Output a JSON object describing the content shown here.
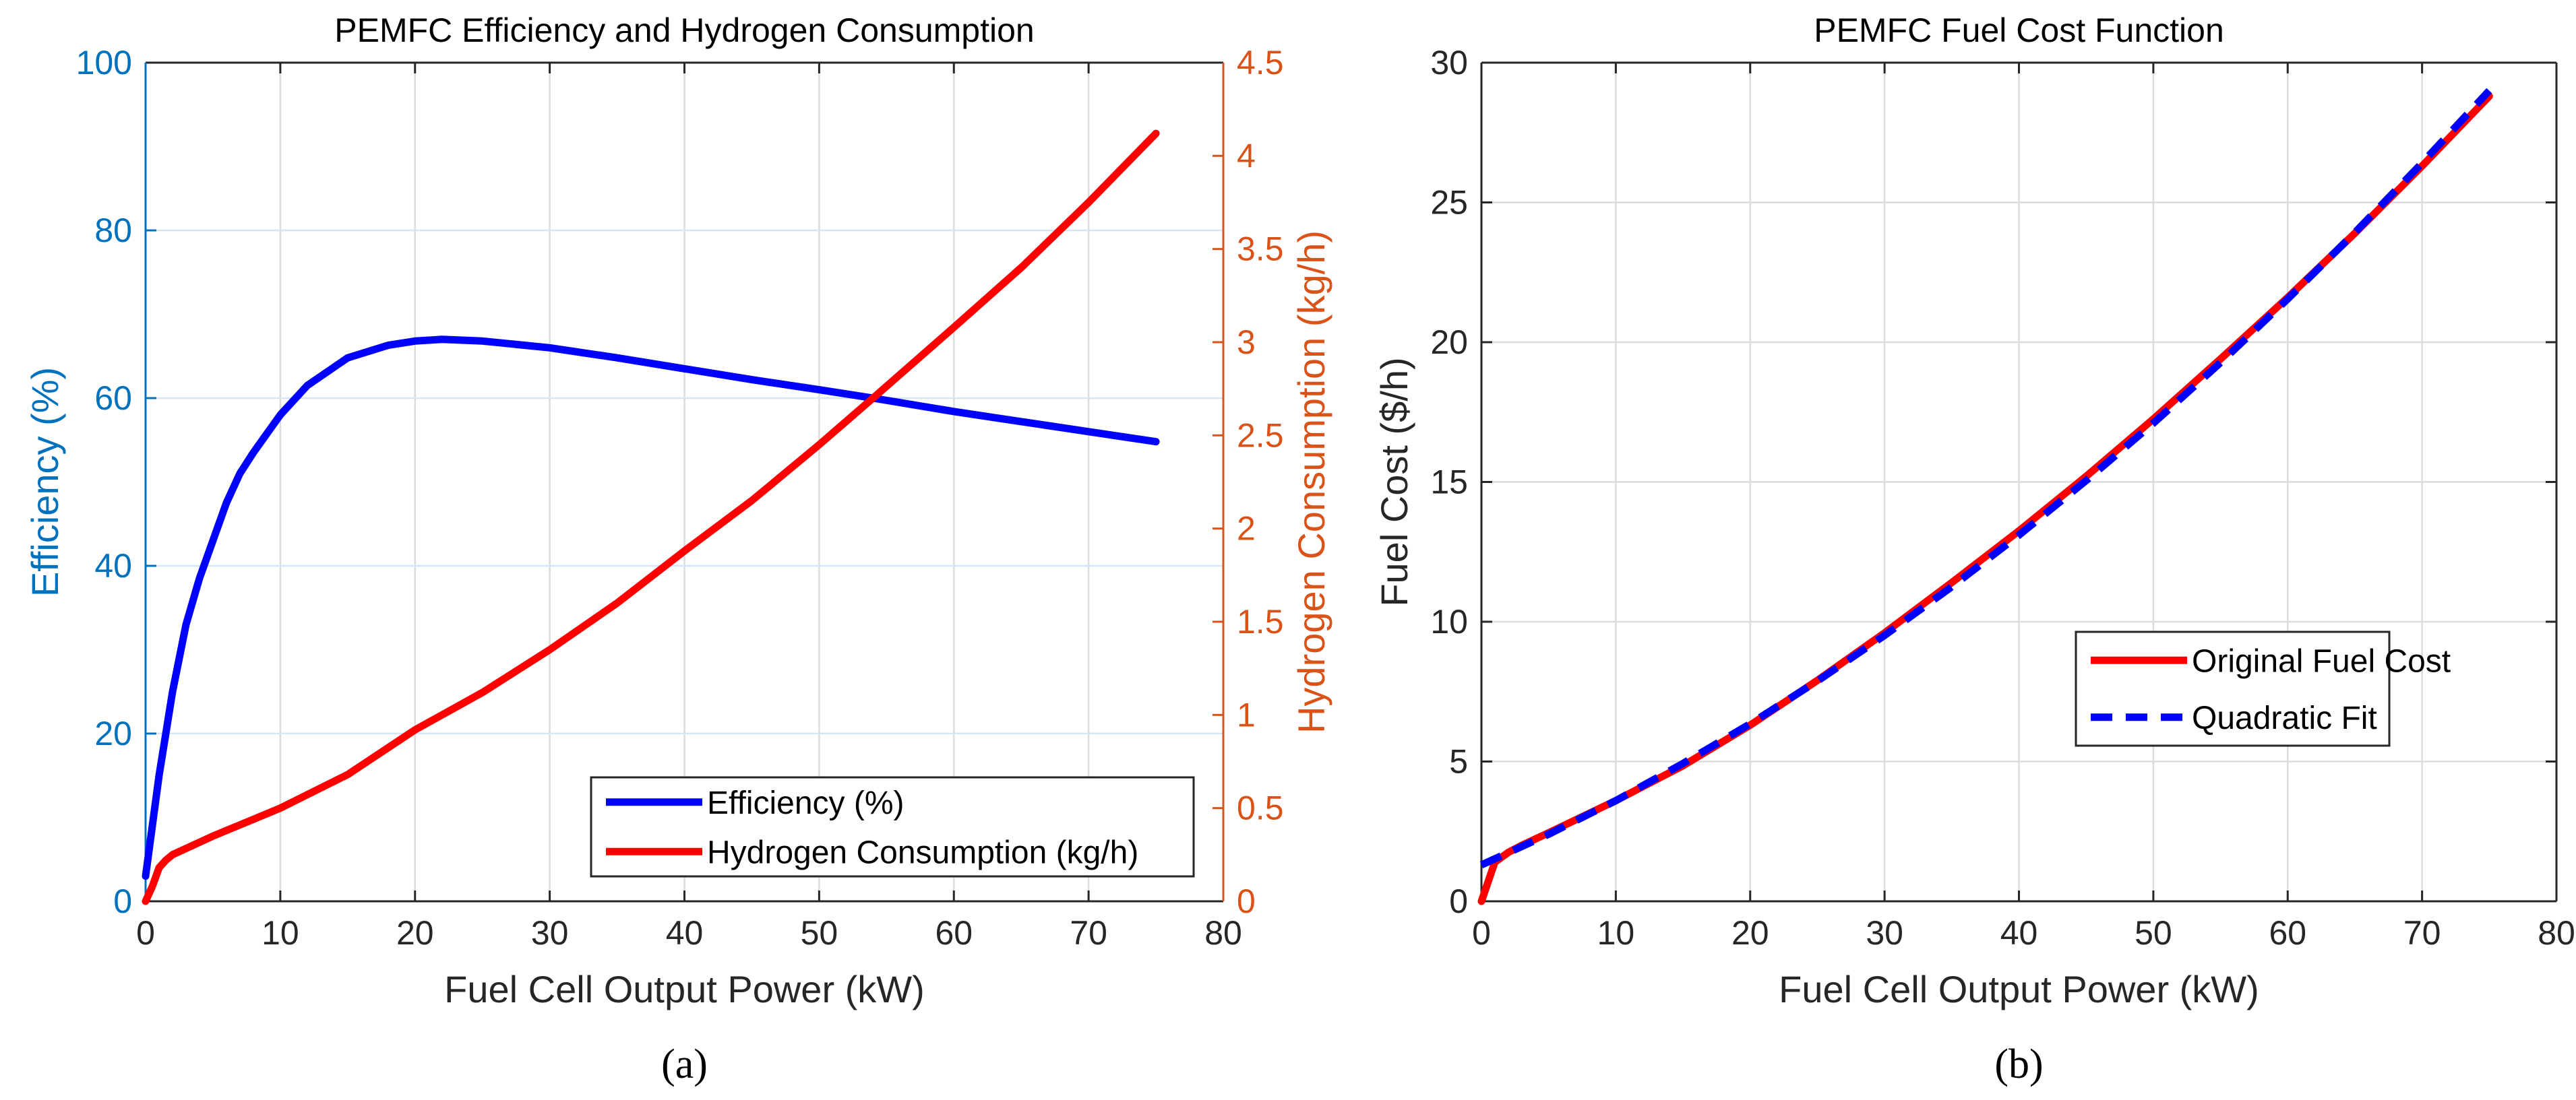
{
  "chart_data": [
    {
      "type": "line",
      "panel_label": "(a)",
      "title": "PEMFC Efficiency and Hydrogen Consumption",
      "xlabel": "Fuel Cell Output Power (kW)",
      "ylabel": "Efficiency (%)",
      "ylabel_right": "Hydrogen Consumption (kg/h)",
      "xlim": [
        0,
        80
      ],
      "ylim": [
        0,
        100
      ],
      "ylim_right": [
        0,
        4.5
      ],
      "xticks": [
        "0",
        "10",
        "20",
        "30",
        "40",
        "50",
        "60",
        "70",
        "80"
      ],
      "yticks": [
        "0",
        "20",
        "40",
        "60",
        "80",
        "100"
      ],
      "yticks_right": [
        "0",
        "0.5",
        "1",
        "1.5",
        "2",
        "2.5",
        "3",
        "3.5",
        "4",
        "4.5"
      ],
      "grid": true,
      "legend_position": "bottom-right",
      "colors": {
        "left_axis": "#0072BD",
        "right_axis": "#D95319"
      },
      "series": [
        {
          "name": "Efficiency (%)",
          "axis": "left",
          "color": "#0000FF",
          "style": "solid",
          "x": [
            0,
            0.5,
            1,
            2,
            3,
            4,
            5,
            6,
            7,
            8,
            10,
            12,
            15,
            18,
            20,
            22,
            25,
            30,
            35,
            40,
            45,
            50,
            54,
            60,
            65,
            70,
            75
          ],
          "y": [
            3,
            9,
            15,
            25,
            33,
            38.5,
            43,
            47.5,
            51,
            53.5,
            58,
            61.5,
            64.8,
            66.3,
            66.8,
            67,
            66.8,
            66,
            64.8,
            63.5,
            62.2,
            61,
            60,
            58.4,
            57.2,
            56,
            54.8
          ]
        },
        {
          "name": "Hydrogen Consumption (kg/h)",
          "axis": "right",
          "color": "#FF0000",
          "style": "solid",
          "x": [
            0,
            0.5,
            1,
            1.5,
            2,
            5,
            10,
            15,
            20,
            25,
            30,
            35,
            40,
            45,
            50,
            54,
            60,
            65,
            70,
            75
          ],
          "y": [
            0,
            0.08,
            0.18,
            0.22,
            0.25,
            0.35,
            0.5,
            0.68,
            0.92,
            1.12,
            1.35,
            1.6,
            1.88,
            2.15,
            2.45,
            2.7,
            3.08,
            3.4,
            3.75,
            4.12
          ]
        }
      ]
    },
    {
      "type": "line",
      "panel_label": "(b)",
      "title": "PEMFC Fuel Cost Function",
      "xlabel": "Fuel Cell Output Power (kW)",
      "ylabel": "Fuel Cost ($/h)",
      "xlim": [
        0,
        80
      ],
      "ylim": [
        0,
        30
      ],
      "xticks": [
        "0",
        "10",
        "20",
        "30",
        "40",
        "50",
        "60",
        "70",
        "80"
      ],
      "yticks": [
        "0",
        "5",
        "10",
        "15",
        "20",
        "25",
        "30"
      ],
      "grid": true,
      "legend_position": "right-middle",
      "series": [
        {
          "name": "Original Fuel Cost",
          "color": "#FF0000",
          "style": "solid",
          "x": [
            0,
            1,
            2,
            3,
            5,
            10,
            15,
            20,
            25,
            30,
            35,
            40,
            45,
            50,
            55,
            60,
            65,
            70,
            75
          ],
          "y": [
            0,
            1.4,
            1.75,
            2.0,
            2.45,
            3.6,
            4.85,
            6.3,
            7.9,
            9.6,
            11.4,
            13.25,
            15.2,
            17.25,
            19.4,
            21.6,
            23.9,
            26.3,
            28.8
          ]
        },
        {
          "name": "Quadratic Fit",
          "color": "#0000FF",
          "style": "dashed",
          "x": [
            0,
            5,
            10,
            15,
            20,
            25,
            30,
            35,
            40,
            45,
            50,
            55,
            60,
            65,
            70,
            75
          ],
          "y": [
            1.3,
            2.4,
            3.6,
            4.93,
            6.35,
            7.88,
            9.51,
            11.25,
            13.1,
            15.05,
            17.1,
            19.27,
            21.55,
            23.92,
            26.41,
            29.0
          ]
        }
      ]
    }
  ]
}
